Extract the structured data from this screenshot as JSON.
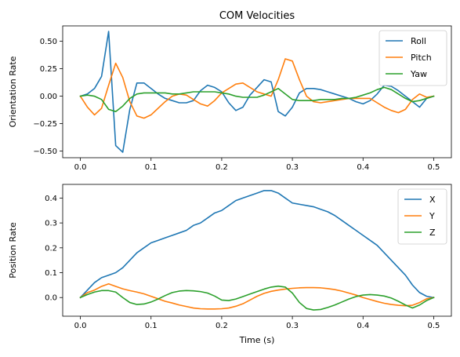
{
  "chart_data": [
    {
      "type": "line",
      "title": "COM Velocities",
      "xlabel": "",
      "ylabel": "Orientation Rate",
      "xlim": [
        -0.025,
        0.525
      ],
      "ylim": [
        -0.56,
        0.64
      ],
      "xticks": [
        0.0,
        0.1,
        0.2,
        0.3,
        0.4,
        0.5
      ],
      "xtick_labels": [
        "0.0",
        "0.1",
        "0.2",
        "0.3",
        "0.4",
        "0.5"
      ],
      "yticks": [
        -0.5,
        -0.25,
        0.0,
        0.25,
        0.5
      ],
      "ytick_labels": [
        "−0.50",
        "−0.25",
        "0.00",
        "0.25",
        "0.50"
      ],
      "legend_position": "top-right",
      "grid": false,
      "x": [
        0.0,
        0.01,
        0.02,
        0.03,
        0.04,
        0.05,
        0.06,
        0.07,
        0.08,
        0.09,
        0.1,
        0.11,
        0.12,
        0.13,
        0.14,
        0.15,
        0.16,
        0.17,
        0.18,
        0.19,
        0.2,
        0.21,
        0.22,
        0.23,
        0.24,
        0.25,
        0.26,
        0.27,
        0.28,
        0.29,
        0.3,
        0.31,
        0.32,
        0.33,
        0.34,
        0.35,
        0.36,
        0.37,
        0.38,
        0.39,
        0.4,
        0.41,
        0.42,
        0.43,
        0.44,
        0.45,
        0.46,
        0.47,
        0.48,
        0.49,
        0.5
      ],
      "series": [
        {
          "name": "Roll",
          "color": "#1f77b4",
          "values": [
            0.0,
            0.02,
            0.07,
            0.18,
            0.59,
            -0.45,
            -0.51,
            -0.12,
            0.12,
            0.12,
            0.07,
            0.02,
            -0.02,
            -0.04,
            -0.06,
            -0.06,
            -0.04,
            0.05,
            0.1,
            0.08,
            0.04,
            -0.06,
            -0.13,
            -0.1,
            0.01,
            0.08,
            0.15,
            0.13,
            -0.14,
            -0.18,
            -0.1,
            0.03,
            0.07,
            0.07,
            0.06,
            0.04,
            0.02,
            0.0,
            -0.02,
            -0.05,
            -0.07,
            -0.04,
            0.02,
            0.1,
            0.09,
            0.05,
            0.0,
            -0.05,
            -0.1,
            -0.02,
            0.0
          ]
        },
        {
          "name": "Pitch",
          "color": "#ff7f0e",
          "values": [
            0.0,
            -0.1,
            -0.17,
            -0.11,
            0.1,
            0.3,
            0.17,
            -0.05,
            -0.18,
            -0.2,
            -0.17,
            -0.11,
            -0.05,
            0.0,
            0.02,
            0.01,
            -0.03,
            -0.07,
            -0.09,
            -0.04,
            0.03,
            0.07,
            0.11,
            0.12,
            0.08,
            0.04,
            0.02,
            0.0,
            0.15,
            0.34,
            0.32,
            0.15,
            0.0,
            -0.05,
            -0.06,
            -0.05,
            -0.04,
            -0.03,
            -0.02,
            -0.02,
            -0.02,
            -0.02,
            -0.06,
            -0.1,
            -0.13,
            -0.15,
            -0.12,
            -0.03,
            0.02,
            -0.01,
            0.0
          ]
        },
        {
          "name": "Yaw",
          "color": "#2ca02c",
          "values": [
            0.0,
            0.01,
            0.0,
            -0.03,
            -0.12,
            -0.14,
            -0.09,
            -0.02,
            0.02,
            0.03,
            0.03,
            0.03,
            0.03,
            0.02,
            0.02,
            0.03,
            0.04,
            0.04,
            0.04,
            0.04,
            0.03,
            0.02,
            0.0,
            -0.01,
            -0.01,
            -0.01,
            0.01,
            0.04,
            0.07,
            0.02,
            -0.03,
            -0.04,
            -0.04,
            -0.04,
            -0.03,
            -0.03,
            -0.03,
            -0.02,
            -0.02,
            -0.01,
            0.01,
            0.03,
            0.06,
            0.08,
            0.06,
            0.02,
            -0.02,
            -0.05,
            -0.04,
            -0.02,
            0.0
          ]
        }
      ]
    },
    {
      "type": "line",
      "title": "",
      "xlabel": "Time (s)",
      "ylabel": "Position Rate",
      "xlim": [
        -0.025,
        0.525
      ],
      "ylim": [
        -0.075,
        0.455
      ],
      "xticks": [
        0.0,
        0.1,
        0.2,
        0.3,
        0.4,
        0.5
      ],
      "xtick_labels": [
        "0.0",
        "0.1",
        "0.2",
        "0.3",
        "0.4",
        "0.5"
      ],
      "yticks": [
        0.0,
        0.1,
        0.2,
        0.3,
        0.4
      ],
      "ytick_labels": [
        "0.0",
        "0.1",
        "0.2",
        "0.3",
        "0.4"
      ],
      "legend_position": "top-right",
      "grid": false,
      "x": [
        0.0,
        0.01,
        0.02,
        0.03,
        0.04,
        0.05,
        0.06,
        0.07,
        0.08,
        0.09,
        0.1,
        0.11,
        0.12,
        0.13,
        0.14,
        0.15,
        0.16,
        0.17,
        0.18,
        0.19,
        0.2,
        0.21,
        0.22,
        0.23,
        0.24,
        0.25,
        0.26,
        0.27,
        0.28,
        0.29,
        0.3,
        0.31,
        0.32,
        0.33,
        0.34,
        0.35,
        0.36,
        0.37,
        0.38,
        0.39,
        0.4,
        0.41,
        0.42,
        0.43,
        0.44,
        0.45,
        0.46,
        0.47,
        0.48,
        0.49,
        0.5
      ],
      "series": [
        {
          "name": "X",
          "color": "#1f77b4",
          "values": [
            0.0,
            0.03,
            0.06,
            0.08,
            0.09,
            0.1,
            0.12,
            0.15,
            0.18,
            0.2,
            0.22,
            0.23,
            0.24,
            0.25,
            0.26,
            0.27,
            0.29,
            0.3,
            0.32,
            0.34,
            0.35,
            0.37,
            0.39,
            0.4,
            0.41,
            0.42,
            0.43,
            0.43,
            0.42,
            0.4,
            0.38,
            0.375,
            0.37,
            0.365,
            0.355,
            0.345,
            0.33,
            0.31,
            0.29,
            0.27,
            0.25,
            0.23,
            0.21,
            0.18,
            0.15,
            0.12,
            0.09,
            0.05,
            0.02,
            0.005,
            0.0
          ]
        },
        {
          "name": "Y",
          "color": "#ff7f0e",
          "values": [
            0.0,
            0.02,
            0.03,
            0.045,
            0.055,
            0.045,
            0.035,
            0.028,
            0.022,
            0.015,
            0.005,
            -0.005,
            -0.015,
            -0.022,
            -0.03,
            -0.036,
            -0.042,
            -0.045,
            -0.046,
            -0.046,
            -0.045,
            -0.042,
            -0.035,
            -0.025,
            -0.01,
            0.005,
            0.017,
            0.025,
            0.03,
            0.034,
            0.037,
            0.039,
            0.04,
            0.04,
            0.039,
            0.036,
            0.032,
            0.026,
            0.018,
            0.01,
            0.0,
            -0.008,
            -0.016,
            -0.023,
            -0.028,
            -0.031,
            -0.033,
            -0.031,
            -0.02,
            -0.005,
            0.0
          ]
        },
        {
          "name": "Z",
          "color": "#2ca02c",
          "values": [
            0.0,
            0.012,
            0.022,
            0.028,
            0.028,
            0.022,
            0.0,
            -0.02,
            -0.028,
            -0.026,
            -0.018,
            -0.006,
            0.008,
            0.02,
            0.026,
            0.028,
            0.027,
            0.024,
            0.018,
            0.006,
            -0.01,
            -0.012,
            -0.006,
            0.004,
            0.014,
            0.024,
            0.034,
            0.042,
            0.046,
            0.042,
            0.018,
            -0.02,
            -0.044,
            -0.05,
            -0.048,
            -0.04,
            -0.03,
            -0.018,
            -0.006,
            0.004,
            0.01,
            0.012,
            0.01,
            0.006,
            -0.002,
            -0.015,
            -0.03,
            -0.042,
            -0.03,
            -0.012,
            0.0
          ]
        }
      ]
    }
  ]
}
